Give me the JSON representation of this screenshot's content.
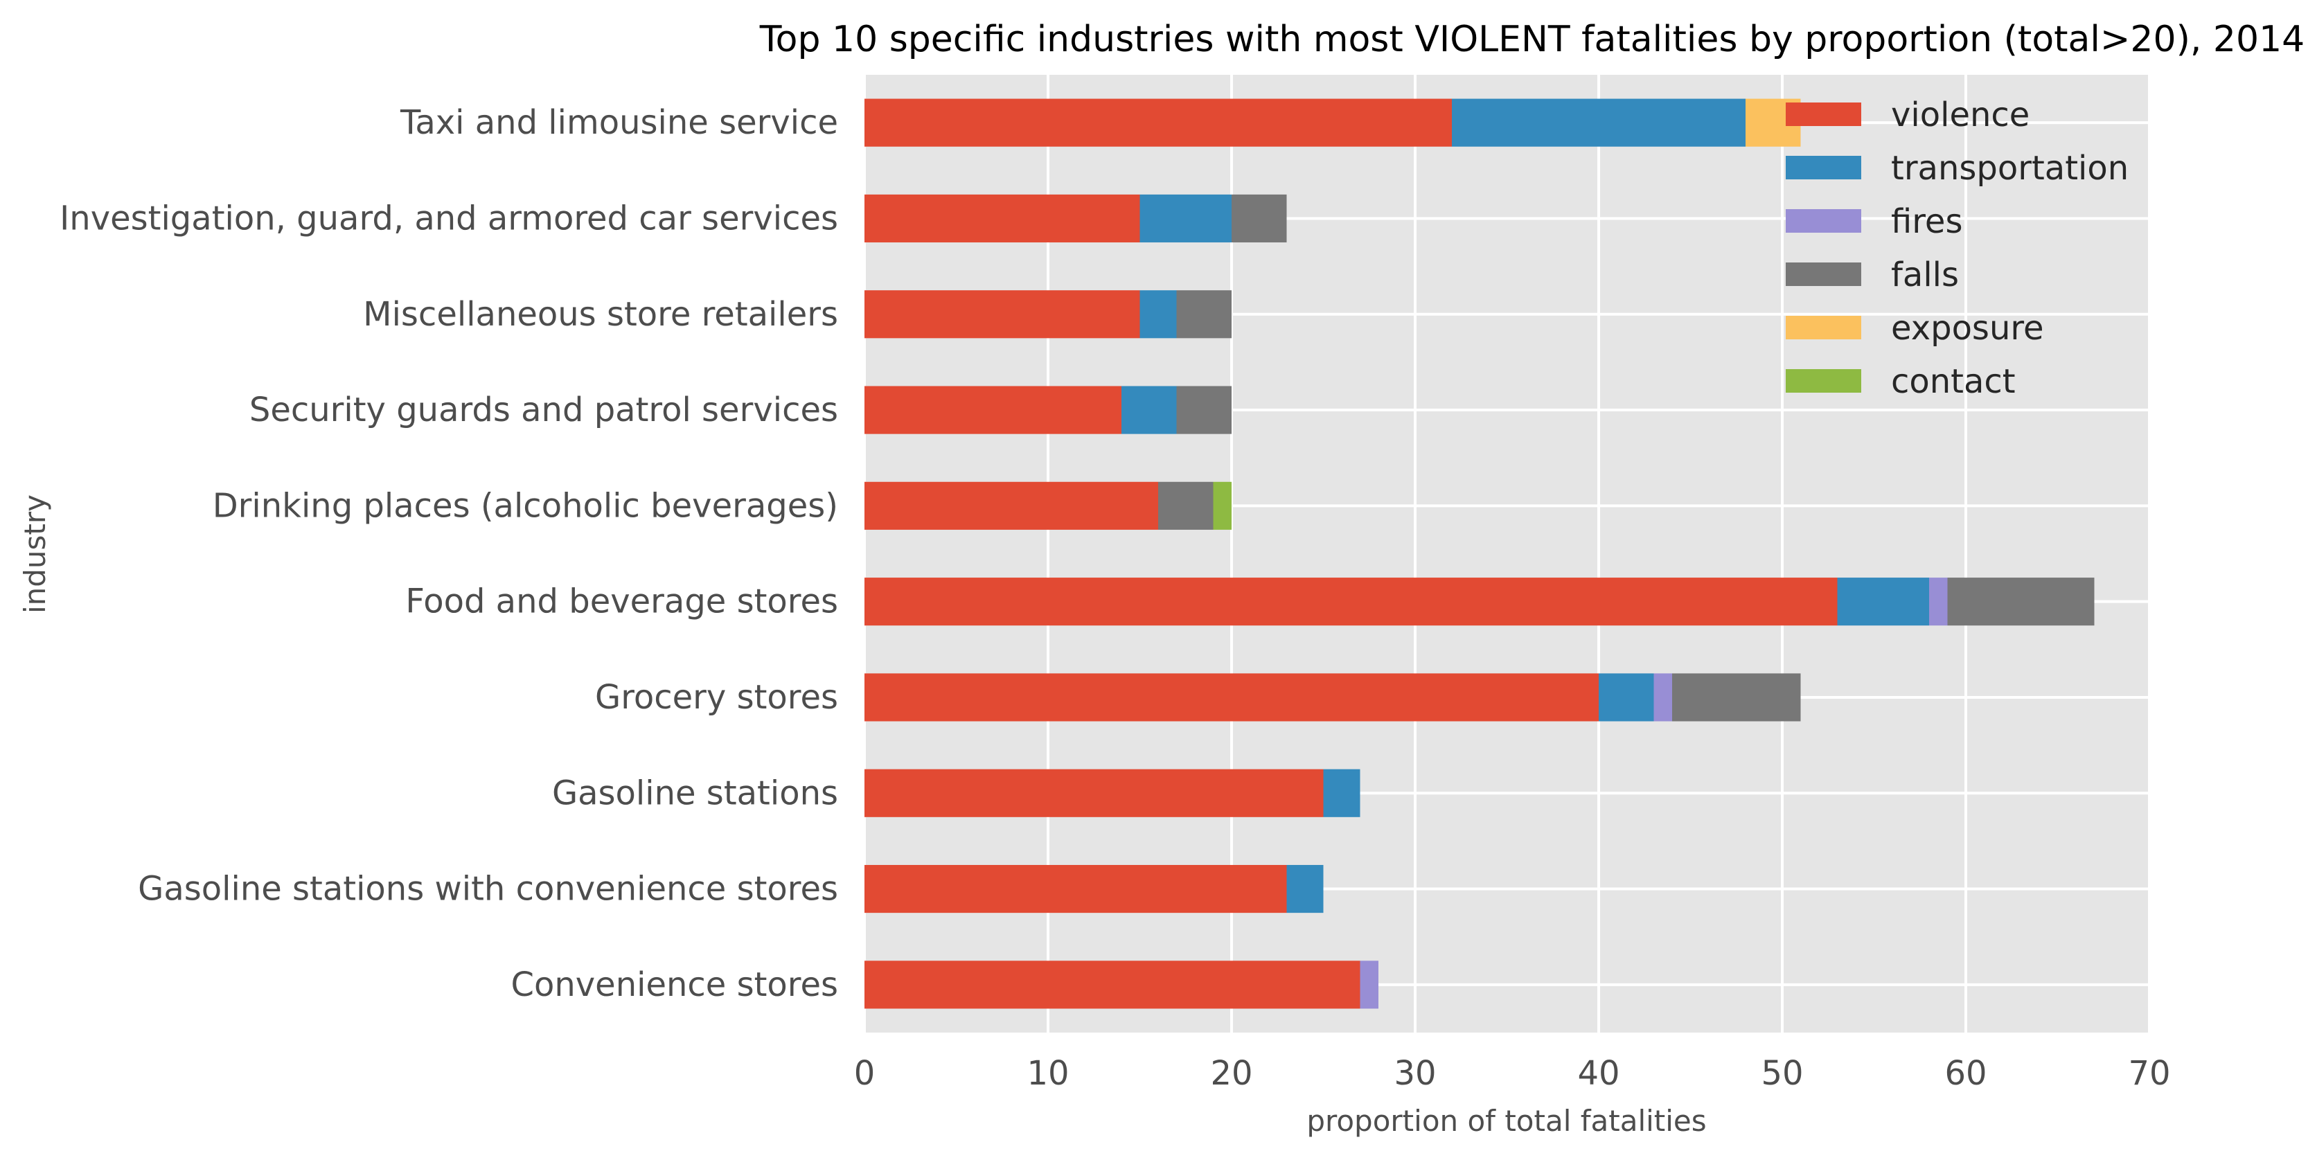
{
  "chart_data": {
    "type": "bar",
    "orientation": "horizontal",
    "stacked": true,
    "title": "Top 10 specific industries with most VIOLENT fatalities by proportion (total>20), 2014",
    "xlabel": "proportion of total fatalities",
    "ylabel": "industry",
    "xlim": [
      0,
      70
    ],
    "xticks": [
      "0",
      "10",
      "20",
      "30",
      "40",
      "50",
      "60",
      "70"
    ],
    "grid": true,
    "legend_position": "top-right",
    "categories": [
      "Taxi and limousine service",
      "Investigation, guard, and armored car services",
      "Miscellaneous store retailers",
      "Security guards and patrol services",
      "Drinking places (alcoholic beverages)",
      "Food and beverage stores",
      "Grocery stores",
      "Gasoline stations",
      "Gasoline stations with convenience stores",
      "Convenience stores"
    ],
    "series": [
      {
        "name": "violence",
        "color": "#E24A33",
        "values": [
          32,
          15,
          15,
          14,
          16,
          53,
          40,
          25,
          23,
          27
        ]
      },
      {
        "name": "transportation",
        "color": "#348ABD",
        "values": [
          16,
          5,
          2,
          3,
          0,
          5,
          3,
          2,
          2,
          0
        ]
      },
      {
        "name": "fires",
        "color": "#988ED5",
        "values": [
          0,
          0,
          0,
          0,
          0,
          1,
          1,
          0,
          0,
          1
        ]
      },
      {
        "name": "falls",
        "color": "#777777",
        "values": [
          0,
          3,
          3,
          3,
          3,
          8,
          7,
          0,
          0,
          0
        ]
      },
      {
        "name": "exposure",
        "color": "#FBC15E",
        "values": [
          3,
          0,
          0,
          0,
          0,
          0,
          0,
          0,
          0,
          0
        ]
      },
      {
        "name": "contact",
        "color": "#8EBA42",
        "values": [
          0,
          0,
          0,
          0,
          1,
          0,
          0,
          0,
          0,
          0
        ]
      }
    ]
  }
}
